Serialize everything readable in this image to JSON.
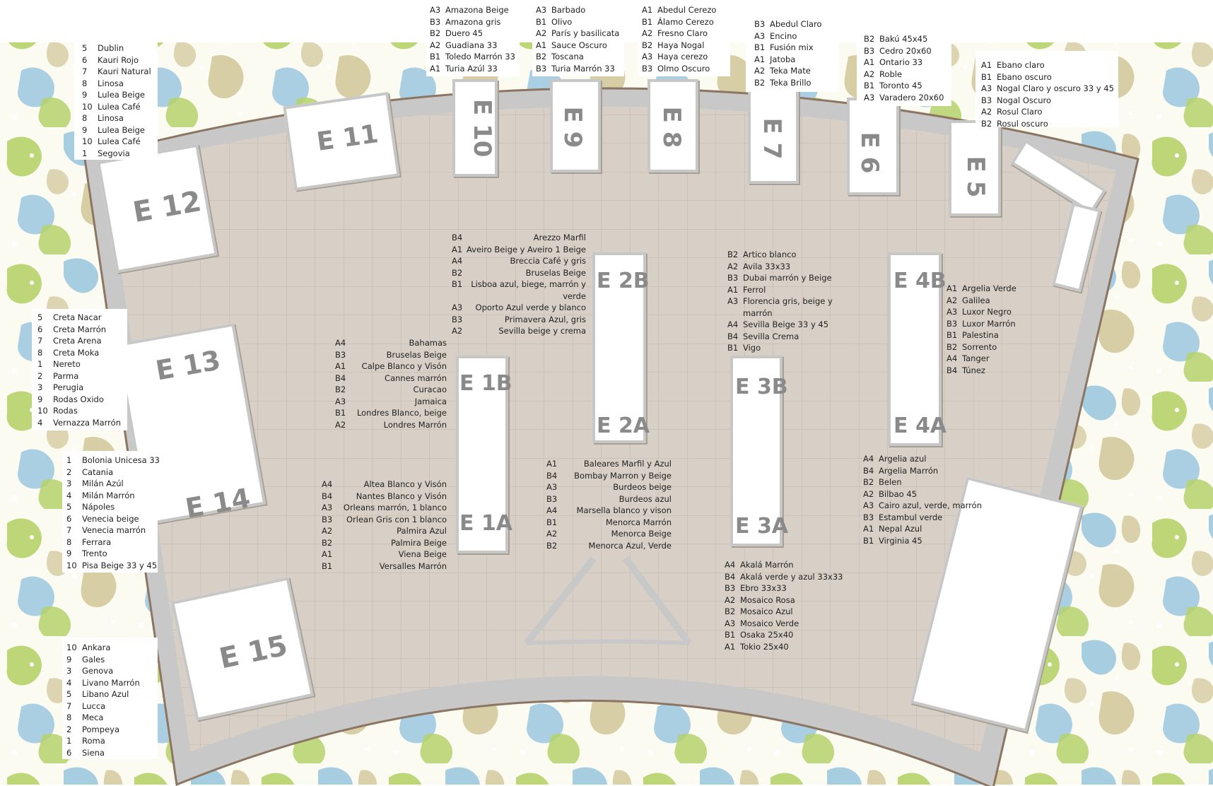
{
  "stands": {
    "e1a": "E 1A",
    "e1b": "E 1B",
    "e2a": "E 2A",
    "e2b": "E 2B",
    "e3a": "E 3A",
    "e3b": "E 3B",
    "e4a": "E 4A",
    "e4b": "E 4B",
    "e5": "E 5",
    "e6": "E 6",
    "e7": "E 7",
    "e8": "E 8",
    "e9": "E 9",
    "e10": "E 10",
    "e11": "E 11",
    "e12": "E 12",
    "e13": "E 13",
    "e14": "E 14",
    "e15": "E 15"
  },
  "lists": {
    "top_e10": [
      {
        "code": "A3",
        "name": "Amazona Beige"
      },
      {
        "code": "B3",
        "name": "Amazona gris"
      },
      {
        "code": "B2",
        "name": "Duero 45"
      },
      {
        "code": "A2",
        "name": "Guadiana 33"
      },
      {
        "code": "B1",
        "name": "Toledo Marrón 33"
      },
      {
        "code": "A1",
        "name": "Turia Azúl 33"
      }
    ],
    "top_e9": [
      {
        "code": "A3",
        "name": "Barbado"
      },
      {
        "code": "B1",
        "name": "Olivo"
      },
      {
        "code": "A2",
        "name": "París y basilicata"
      },
      {
        "code": "A1",
        "name": "Sauce Oscuro"
      },
      {
        "code": "B2",
        "name": "Toscana"
      },
      {
        "code": "B3",
        "name": "Turia Marrón 33"
      }
    ],
    "top_e8": [
      {
        "code": "A1",
        "name": "Abedul Cerezo"
      },
      {
        "code": "B1",
        "name": "Álamo Cerezo"
      },
      {
        "code": "A2",
        "name": "Fresno Claro"
      },
      {
        "code": "B2",
        "name": "Haya Nogal"
      },
      {
        "code": "A3",
        "name": "Haya cerezo"
      },
      {
        "code": "B3",
        "name": "Olmo Oscuro"
      }
    ],
    "top_e7": [
      {
        "code": "B3",
        "name": "Abedul Claro"
      },
      {
        "code": "A3",
        "name": "Encino"
      },
      {
        "code": "B1",
        "name": "Fusión mix"
      },
      {
        "code": "A1",
        "name": "Jatoba"
      },
      {
        "code": "A2",
        "name": "Teka Mate"
      },
      {
        "code": "B2",
        "name": "Teka Brillo"
      }
    ],
    "top_e6": [
      {
        "code": "B2",
        "name": "Bakú 45x45"
      },
      {
        "code": "B3",
        "name": "Cedro 20x60"
      },
      {
        "code": "A1",
        "name": "Ontario 33"
      },
      {
        "code": "A2",
        "name": "Roble"
      },
      {
        "code": "B1",
        "name": "Toronto 45"
      },
      {
        "code": "A3",
        "name": "Varadero 20x60"
      }
    ],
    "top_e5": [
      {
        "code": "A1",
        "name": "Ebano claro"
      },
      {
        "code": "B1",
        "name": "Ebano oscuro"
      },
      {
        "code": "A3",
        "name": "Nogal Claro y oscuro 33 y 45"
      },
      {
        "code": "B3",
        "name": "Nogal Oscuro"
      },
      {
        "code": "A2",
        "name": "Rosul Claro"
      },
      {
        "code": "B2",
        "name": "Rosul oscuro"
      }
    ],
    "left_top": [
      {
        "code": "5",
        "name": "Dublin"
      },
      {
        "code": "6",
        "name": "Kauri Rojo"
      },
      {
        "code": "7",
        "name": "Kauri Natural"
      },
      {
        "code": "8",
        "name": "Linosa"
      },
      {
        "code": "9",
        "name": "Lulea Beige"
      },
      {
        "code": "10",
        "name": "Lulea Café"
      },
      {
        "code": "8",
        "name": "Linosa"
      },
      {
        "code": "9",
        "name": "Lulea Beige"
      },
      {
        "code": "10",
        "name": "Lulea Café"
      },
      {
        "code": "1",
        "name": "Segovia"
      }
    ],
    "left_mid": [
      {
        "code": "5",
        "name": "Creta Nacar"
      },
      {
        "code": "6",
        "name": "Creta Marrón"
      },
      {
        "code": "7",
        "name": "Creta Arena"
      },
      {
        "code": "8",
        "name": "Creta Moka"
      },
      {
        "code": "1",
        "name": "Nereto"
      },
      {
        "code": "2",
        "name": "Parma"
      },
      {
        "code": "3",
        "name": "Perugia"
      },
      {
        "code": "9",
        "name": "Rodas Oxido"
      },
      {
        "code": "10",
        "name": "Rodas"
      },
      {
        "code": "4",
        "name": "Vernazza Marrón"
      }
    ],
    "left_low": [
      {
        "code": "1",
        "name": "Bolonia Unicesa 33"
      },
      {
        "code": "2",
        "name": "Catania"
      },
      {
        "code": "3",
        "name": "Milán Azúl"
      },
      {
        "code": "4",
        "name": "Milán Marrón"
      },
      {
        "code": "5",
        "name": "Nápoles"
      },
      {
        "code": "6",
        "name": "Venecia beige"
      },
      {
        "code": "7",
        "name": "Venecia marrón"
      },
      {
        "code": "8",
        "name": "Ferrara"
      },
      {
        "code": "9",
        "name": "Trento"
      },
      {
        "code": "10",
        "name": "Pisa Beige 33 y 45"
      }
    ],
    "left_bottom": [
      {
        "code": "10",
        "name": "Ankara"
      },
      {
        "code": "9",
        "name": "Gales"
      },
      {
        "code": "3",
        "name": "Genova"
      },
      {
        "code": "4",
        "name": "Livano Marrón"
      },
      {
        "code": "5",
        "name": "Libano Azul"
      },
      {
        "code": "7",
        "name": "Lucca"
      },
      {
        "code": "8",
        "name": "Meca"
      },
      {
        "code": "2",
        "name": "Pompeya"
      },
      {
        "code": "1",
        "name": "Roma"
      },
      {
        "code": "6",
        "name": "Siena"
      }
    ],
    "e1b_list": [
      {
        "code": "A4",
        "name": "Bahamas"
      },
      {
        "code": "B3",
        "name": "Bruselas Beige"
      },
      {
        "code": "A1",
        "name": "Calpe Blanco y Visón"
      },
      {
        "code": "B4",
        "name": "Cannes marrón"
      },
      {
        "code": "B2",
        "name": "Curacao"
      },
      {
        "code": "A3",
        "name": "Jamaica"
      },
      {
        "code": "B1",
        "name": "Londres Blanco, beige"
      },
      {
        "code": "A2",
        "name": "Londres Marrón"
      }
    ],
    "e1a_list": [
      {
        "code": "A4",
        "name": "Altea Blanco y Visón"
      },
      {
        "code": "B4",
        "name": "Nantes Blanco y Visón"
      },
      {
        "code": "A3",
        "name": "Orleans marrón, 1 blanco"
      },
      {
        "code": "B3",
        "name": "Orlean Gris con 1 blanco"
      },
      {
        "code": "A2",
        "name": "Palmira Azul"
      },
      {
        "code": "B2",
        "name": "Palmira Beige"
      },
      {
        "code": "A1",
        "name": "Viena Beige"
      },
      {
        "code": "B1",
        "name": "Versalles Marrón"
      }
    ],
    "e2b_list": [
      {
        "code": "B4",
        "name": "Arezzo Marfil"
      },
      {
        "code": "A1",
        "name": "Aveiro Beige y Aveiro 1 Beige"
      },
      {
        "code": "A4",
        "name": "Breccia Café y gris"
      },
      {
        "code": "B2",
        "name": "Bruselas Beige"
      },
      {
        "code": "B1",
        "name": "Lisboa azul, biege, marrón y"
      },
      {
        "code": "",
        "name": "verde"
      },
      {
        "code": "A3",
        "name": "Oporto Azul verde y blanco"
      },
      {
        "code": "B3",
        "name": "Primavera Azul, gris"
      },
      {
        "code": "A2",
        "name": "Sevilla beige y crema"
      }
    ],
    "e2a_list": [
      {
        "code": "A1",
        "name": "Baleares Marfil y Azul"
      },
      {
        "code": "B4",
        "name": "Bombay Marron y Beige"
      },
      {
        "code": "A3",
        "name": "Burdeos  beige"
      },
      {
        "code": "B3",
        "name": "Burdeos azul"
      },
      {
        "code": "A4",
        "name": "Marsella blanco y vison"
      },
      {
        "code": "B1",
        "name": "Menorca Marrón"
      },
      {
        "code": "A2",
        "name": "Menorca Beige"
      },
      {
        "code": "B2",
        "name": "Menorca Azul, Verde"
      }
    ],
    "e3b_list": [
      {
        "code": "B2",
        "name": "Artico blanco"
      },
      {
        "code": "A2",
        "name": "Avila 33x33"
      },
      {
        "code": "B3",
        "name": "Dubai marrón y Beige"
      },
      {
        "code": "A1",
        "name": "Ferrol"
      },
      {
        "code": "A3",
        "name": "Florencia gris, beige y"
      },
      {
        "code": "",
        "name": "marrón"
      },
      {
        "code": "A4",
        "name": "Sevilla Beige 33 y 45"
      },
      {
        "code": "B4",
        "name": "Sevilla Crema"
      },
      {
        "code": "B1",
        "name": "Vigo"
      }
    ],
    "e3a_list": [
      {
        "code": "A4",
        "name": "Akalá Marrón"
      },
      {
        "code": "B4",
        "name": "Akalá verde y azul 33x33"
      },
      {
        "code": "B3",
        "name": "Ebro 33x33"
      },
      {
        "code": "A2",
        "name": "Mosaico Rosa"
      },
      {
        "code": "B2",
        "name": "Mosaico Azul"
      },
      {
        "code": "A3",
        "name": "Mosaico Verde"
      },
      {
        "code": "B1",
        "name": "Osaka 25x40"
      },
      {
        "code": "A1",
        "name": "Tokio 25x40"
      }
    ],
    "e4b_list": [
      {
        "code": "A1",
        "name": "Argelia Verde"
      },
      {
        "code": "A2",
        "name": "Galilea"
      },
      {
        "code": "A3",
        "name": "Luxor Negro"
      },
      {
        "code": "B3",
        "name": "Luxor Marrón"
      },
      {
        "code": "B1",
        "name": "Palestina"
      },
      {
        "code": "B2",
        "name": "Sorrento"
      },
      {
        "code": "A4",
        "name": "Tanger"
      },
      {
        "code": "B4",
        "name": "Túnez"
      }
    ],
    "e4a_list": [
      {
        "code": "A4",
        "name": "Argelia azul"
      },
      {
        "code": "B4",
        "name": "Argelia Marrón"
      },
      {
        "code": "B2",
        "name": "Belen"
      },
      {
        "code": "A2",
        "name": "Bilbao 45"
      },
      {
        "code": "A3",
        "name": "Cairo azul, verde, marrón"
      },
      {
        "code": "B3",
        "name": "Estambul verde"
      },
      {
        "code": "A1",
        "name": "Nepal Azul"
      },
      {
        "code": "B1",
        "name": "Virginia 45"
      }
    ]
  },
  "colors": {
    "floor": "#d8d0c6",
    "floor_border": "#8c7563",
    "wall": "#c8c8c8",
    "stand_border": "#c7c7c7",
    "stand_label": "#8a8a8a",
    "pattern_green": "#b6d36b",
    "pattern_blue": "#9ec8df",
    "pattern_tan": "#d6cba2"
  }
}
